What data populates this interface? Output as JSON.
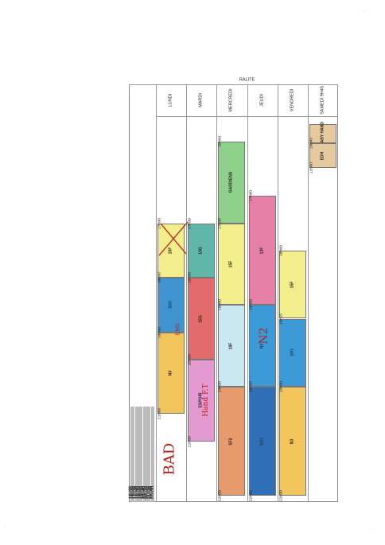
{
  "title": "RALITE",
  "days": [
    {
      "key": "lundi",
      "label": "LUNDI"
    },
    {
      "key": "mardi",
      "label": "MARDI"
    },
    {
      "key": "mercredi",
      "label": "MERCREDI"
    },
    {
      "key": "jeudi",
      "label": "JEUDI"
    },
    {
      "key": "vendredi",
      "label": "VENDREDI"
    },
    {
      "key": "samedi",
      "label": "SAMEDI 9H45"
    }
  ],
  "times": [
    "16H00",
    "16H15",
    "16H30",
    "16H45",
    "17H00",
    "17H15",
    "17H30",
    "17H45",
    "18H00",
    "18H15",
    "18H30",
    "18H45",
    "19H00",
    "19H15",
    "19H30",
    "19H45",
    "20H00",
    "20H15",
    "20H30",
    "20H45",
    "21H00",
    "21H15",
    "21H30",
    "21H45",
    "22H00",
    "22H15",
    "22H30"
  ],
  "blocks": [
    {
      "day": 0,
      "label": "15F",
      "start": "17H30",
      "end": "18H30",
      "color": "#f2ee8c",
      "sub_col": 0,
      "sub_cols": 1
    },
    {
      "day": 0,
      "label": "15G",
      "start": "18H30",
      "end": "19H30",
      "color": "#3f93cf",
      "sub_col": 0,
      "sub_cols": 1
    },
    {
      "day": 0,
      "label": "N3",
      "start": "19H30",
      "end": "21H00",
      "color": "#f2c45c",
      "sub_col": 0,
      "sub_cols": 1
    },
    {
      "day": 1,
      "label": "13G",
      "start": "17H30",
      "end": "18H30",
      "color": "#5fb6a9",
      "sub_col": 0,
      "sub_cols": 2
    },
    {
      "day": 1,
      "label": "15G",
      "start": "18H30",
      "end": "20H00",
      "color": "#e46b6b",
      "sub_col": 0,
      "sub_cols": 1
    },
    {
      "day": 1,
      "label": "ESPOIR",
      "start": "20H00",
      "end": "21H30",
      "color": "#e39ad0",
      "sub_col": 0,
      "sub_cols": 1
    },
    {
      "day": 2,
      "label": "GARDIENS",
      "start": "16H00",
      "end": "17H30",
      "color": "#8fd18a",
      "sub_col": 0,
      "sub_cols": 1
    },
    {
      "day": 2,
      "label": "15F",
      "start": "17H30",
      "end": "19H00",
      "color": "#f2ee8c",
      "sub_col": 0,
      "sub_cols": 1
    },
    {
      "day": 2,
      "label": "18F",
      "start": "19H00",
      "end": "20H30",
      "color": "#c9e8f0",
      "sub_col": 0,
      "sub_cols": 1
    },
    {
      "day": 2,
      "label": "SF2",
      "start": "20H30",
      "end": "22H30",
      "color": "#e79a6c",
      "sub_col": 0,
      "sub_cols": 1
    },
    {
      "day": 3,
      "label": "13F",
      "start": "17H00",
      "end": "19H00",
      "color": "#e680a6",
      "sub_col": 0,
      "sub_cols": 1
    },
    {
      "day": 3,
      "label": "N2",
      "start": "19H00",
      "end": "20H30",
      "color": "#3c9bd6",
      "sub_col": 0,
      "sub_cols": 1
    },
    {
      "day": 3,
      "label": "SG1",
      "start": "20H30",
      "end": "22H30",
      "color": "#2e6fb8",
      "sub_col": 0,
      "sub_cols": 1
    },
    {
      "day": 4,
      "label": "15F",
      "start": "18H00",
      "end": "19H15",
      "color": "#f2ee8c",
      "sub_col": 0,
      "sub_cols": 1
    },
    {
      "day": 4,
      "label": "18G",
      "start": "19H15",
      "end": "20H30",
      "color": "#3c9bd6",
      "sub_col": 0,
      "sub_cols": 1
    },
    {
      "day": 4,
      "label": "N3",
      "start": "20H30",
      "end": "22H30",
      "color": "#f2c45c",
      "sub_col": 0,
      "sub_cols": 1
    },
    {
      "day": 5,
      "label": "BABY HAND",
      "start": "9H45",
      "end": "10H45",
      "color": "#e7c9a0",
      "sub_col": 0,
      "sub_cols": 1
    },
    {
      "day": 5,
      "label": "EDH",
      "start": "10H45",
      "end": "12H00",
      "color": "#e7c9a0",
      "sub_col": 0,
      "sub_cols": 1
    }
  ],
  "time_labels": [
    {
      "day": 0,
      "text": "17H30",
      "at": "17H30"
    },
    {
      "day": 0,
      "text": "18H30",
      "at": "18H30"
    },
    {
      "day": 0,
      "text": "19H30",
      "at": "19H30"
    },
    {
      "day": 0,
      "text": "21H00",
      "at": "21H00"
    },
    {
      "day": 1,
      "text": "17H30",
      "at": "17H30"
    },
    {
      "day": 1,
      "text": "18H30",
      "at": "18H30"
    },
    {
      "day": 1,
      "text": "20H00",
      "at": "20H00"
    },
    {
      "day": 1,
      "text": "21H30",
      "at": "21H30"
    },
    {
      "day": 2,
      "text": "16H00",
      "at": "16H00"
    },
    {
      "day": 2,
      "text": "17H30",
      "at": "17H30"
    },
    {
      "day": 2,
      "text": "19H00",
      "at": "19H00"
    },
    {
      "day": 2,
      "text": "20H30",
      "at": "20H30"
    },
    {
      "day": 2,
      "text": "22H30",
      "at": "22H30"
    },
    {
      "day": 3,
      "text": "17H00",
      "at": "17H00"
    },
    {
      "day": 3,
      "text": "19H00",
      "at": "19H00"
    },
    {
      "day": 3,
      "text": "20H30",
      "at": "20H30"
    },
    {
      "day": 3,
      "text": "22H30",
      "at": "22H30"
    },
    {
      "day": 4,
      "text": "18H00",
      "at": "18H00"
    },
    {
      "day": 4,
      "text": "19H15",
      "at": "19H15"
    },
    {
      "day": 4,
      "text": "20H30",
      "at": "20H30"
    },
    {
      "day": 4,
      "text": "22H30",
      "at": "22H30"
    },
    {
      "day": 5,
      "text": "10H45",
      "at": "10H45"
    },
    {
      "day": 5,
      "text": "12H00",
      "at": "12H00"
    }
  ],
  "handwriting": {
    "bad": "BAD",
    "n2": "N2",
    "hand_ft": "Hand F.T",
    "bms": "BMS"
  }
}
